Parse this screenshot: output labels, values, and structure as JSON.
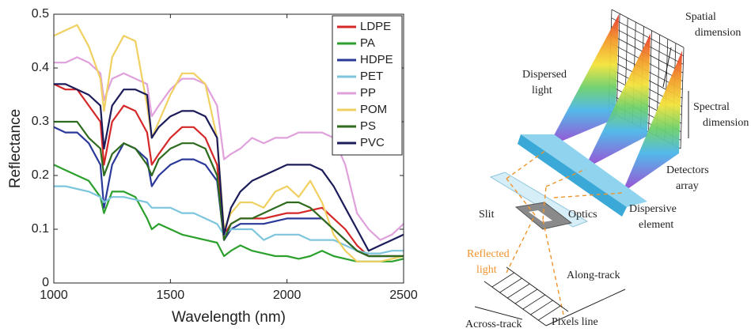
{
  "chart_data": {
    "type": "line",
    "xlabel": "Wavelength (nm)",
    "ylabel": "Reflectance",
    "x": [
      1000,
      1050,
      1100,
      1150,
      1200,
      1215,
      1250,
      1300,
      1350,
      1400,
      1420,
      1450,
      1500,
      1550,
      1600,
      1650,
      1700,
      1730,
      1760,
      1800,
      1850,
      1900,
      1950,
      2000,
      2050,
      2100,
      2150,
      2200,
      2250,
      2300,
      2350,
      2400,
      2450,
      2500
    ],
    "xlim": [
      1000,
      2500
    ],
    "xticks": [
      1000,
      1500,
      2000,
      2500
    ],
    "ylim": [
      0,
      0.5
    ],
    "yticks": [
      0,
      0.1,
      0.2,
      0.3,
      0.4,
      0.5
    ],
    "legend": "upper right",
    "series": [
      {
        "name": "LDPE",
        "color": "#d62728",
        "values": [
          0.37,
          0.36,
          0.36,
          0.33,
          0.3,
          0.22,
          0.3,
          0.33,
          0.32,
          0.28,
          0.22,
          0.24,
          0.27,
          0.29,
          0.29,
          0.27,
          0.22,
          0.09,
          0.11,
          0.12,
          0.12,
          0.12,
          0.125,
          0.13,
          0.13,
          0.135,
          0.14,
          0.12,
          0.1,
          0.07,
          0.05,
          0.05,
          0.05,
          0.05
        ]
      },
      {
        "name": "PA",
        "color": "#2ca02c",
        "values": [
          0.22,
          0.21,
          0.2,
          0.19,
          0.16,
          0.13,
          0.17,
          0.17,
          0.16,
          0.12,
          0.1,
          0.11,
          0.1,
          0.09,
          0.085,
          0.08,
          0.075,
          0.05,
          0.06,
          0.07,
          0.06,
          0.055,
          0.05,
          0.05,
          0.045,
          0.05,
          0.06,
          0.05,
          0.045,
          0.04,
          0.04,
          0.04,
          0.04,
          0.045
        ]
      },
      {
        "name": "HDPE",
        "color": "#2b3a9a",
        "values": [
          0.29,
          0.28,
          0.28,
          0.26,
          0.22,
          0.14,
          0.22,
          0.26,
          0.25,
          0.23,
          0.18,
          0.2,
          0.22,
          0.23,
          0.23,
          0.22,
          0.19,
          0.08,
          0.1,
          0.11,
          0.11,
          0.11,
          0.115,
          0.12,
          0.12,
          0.12,
          0.12,
          0.1,
          0.08,
          0.06,
          0.05,
          0.05,
          0.05,
          0.05
        ]
      },
      {
        "name": "PET",
        "color": "#7cc5dc",
        "values": [
          0.18,
          0.18,
          0.175,
          0.17,
          0.16,
          0.15,
          0.16,
          0.16,
          0.155,
          0.15,
          0.14,
          0.14,
          0.14,
          0.13,
          0.13,
          0.12,
          0.11,
          0.09,
          0.1,
          0.1,
          0.1,
          0.08,
          0.09,
          0.09,
          0.09,
          0.08,
          0.08,
          0.08,
          0.07,
          0.06,
          0.055,
          0.055,
          0.06,
          0.06
        ]
      },
      {
        "name": "PP",
        "color": "#e0a0dc",
        "values": [
          0.41,
          0.41,
          0.42,
          0.41,
          0.39,
          0.34,
          0.38,
          0.39,
          0.38,
          0.37,
          0.31,
          0.33,
          0.36,
          0.38,
          0.38,
          0.37,
          0.33,
          0.23,
          0.24,
          0.25,
          0.27,
          0.26,
          0.27,
          0.27,
          0.28,
          0.28,
          0.28,
          0.27,
          0.22,
          0.13,
          0.1,
          0.08,
          0.09,
          0.11
        ]
      },
      {
        "name": "POM",
        "color": "#f0d060",
        "values": [
          0.46,
          0.47,
          0.48,
          0.44,
          0.38,
          0.32,
          0.42,
          0.46,
          0.45,
          0.33,
          0.27,
          0.3,
          0.35,
          0.39,
          0.39,
          0.37,
          0.27,
          0.1,
          0.13,
          0.15,
          0.15,
          0.14,
          0.17,
          0.18,
          0.16,
          0.19,
          0.15,
          0.09,
          0.06,
          0.04,
          0.04,
          0.04,
          0.045,
          0.05
        ]
      },
      {
        "name": "PS",
        "color": "#2e6b1e",
        "values": [
          0.3,
          0.3,
          0.3,
          0.27,
          0.25,
          0.2,
          0.24,
          0.26,
          0.25,
          0.22,
          0.2,
          0.23,
          0.25,
          0.26,
          0.26,
          0.25,
          0.2,
          0.08,
          0.11,
          0.12,
          0.12,
          0.13,
          0.14,
          0.15,
          0.15,
          0.14,
          0.12,
          0.1,
          0.08,
          0.06,
          0.05,
          0.05,
          0.05,
          0.05
        ]
      },
      {
        "name": "PVC",
        "color": "#1c1c5a",
        "values": [
          0.37,
          0.37,
          0.36,
          0.35,
          0.33,
          0.25,
          0.33,
          0.36,
          0.36,
          0.35,
          0.27,
          0.29,
          0.31,
          0.32,
          0.32,
          0.31,
          0.27,
          0.09,
          0.14,
          0.17,
          0.19,
          0.2,
          0.21,
          0.22,
          0.22,
          0.22,
          0.21,
          0.18,
          0.14,
          0.1,
          0.06,
          0.07,
          0.08,
          0.09
        ]
      }
    ]
  },
  "diagram": {
    "labels": [
      {
        "lines": [
          "Spatial",
          "dimension"
        ]
      },
      {
        "lines": [
          "Dispersed",
          "light"
        ]
      },
      {
        "lines": [
          "Spectral",
          "dimension"
        ]
      },
      {
        "lines": [
          "Detectors",
          "array"
        ]
      },
      {
        "lines": [
          "Slit"
        ]
      },
      {
        "lines": [
          "Optics"
        ]
      },
      {
        "lines": [
          "Dispersive",
          "element"
        ]
      },
      {
        "lines": [
          "Reflected",
          "light"
        ]
      },
      {
        "lines": [
          "Along-track"
        ]
      },
      {
        "lines": [
          "Across-track"
        ]
      },
      {
        "lines": [
          "Pixels line"
        ]
      }
    ]
  }
}
